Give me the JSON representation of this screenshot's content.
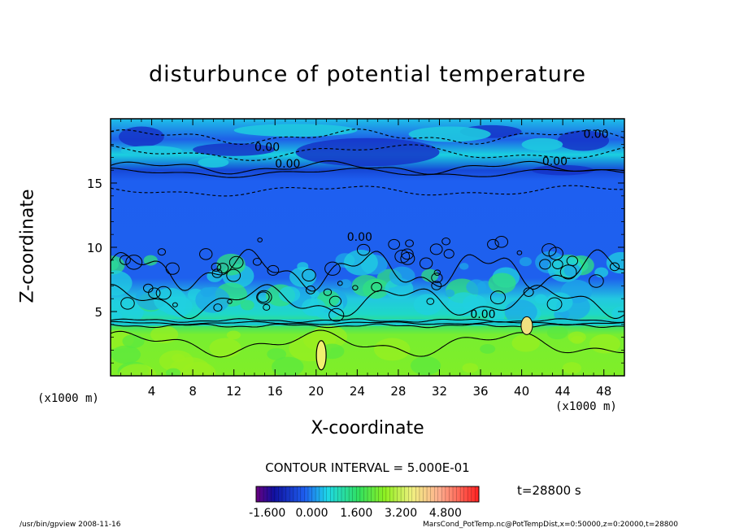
{
  "chart_data": {
    "type": "heatmap",
    "title": "disturbunce of potential temperature",
    "xlabel": "X-coordinate",
    "ylabel": "Z-coordinate",
    "x_unit": "(x1000 m)",
    "y_unit": "(x1000 m)",
    "xlim": [
      0,
      50
    ],
    "ylim": [
      0,
      20
    ],
    "x_ticks": [
      "4",
      "8",
      "12",
      "16",
      "20",
      "24",
      "28",
      "32",
      "36",
      "40",
      "44",
      "48"
    ],
    "y_ticks": [
      "5",
      "10",
      "15"
    ],
    "contour_labels": [
      "0.00",
      "0.00",
      "0.00",
      "0.00",
      "0.00",
      "0.00"
    ],
    "contour_interval_text": "CONTOUR INTERVAL = 5.000E-01",
    "time_text": "t=28800 s",
    "colorbar": {
      "min": -2.0,
      "max": 6.0,
      "tick_labels": [
        "-1.600",
        "0.000",
        "1.600",
        "3.200",
        "4.800"
      ]
    },
    "field_bands": [
      {
        "z_from": 0,
        "z_to": 4,
        "level": 1.8
      },
      {
        "z_from": 4,
        "z_to": 7,
        "level": 0.3
      },
      {
        "z_from": 7,
        "z_to": 15.5,
        "level": -1.2
      },
      {
        "z_from": 15.5,
        "z_to": 20,
        "level": -0.6
      }
    ]
  },
  "footer": {
    "left": "/usr/bin/gpview   2008-11-16",
    "right": "MarsCond_PotTemp.nc@PotTempDist,x=0:50000,z=0:20000,t=28800"
  },
  "colors": {
    "low": "#1020a0",
    "mid": "#1e5ff0",
    "cyan": "#1ed8e8",
    "green": "#30e060",
    "light_green": "#8ef020",
    "high": "#ff2020"
  }
}
